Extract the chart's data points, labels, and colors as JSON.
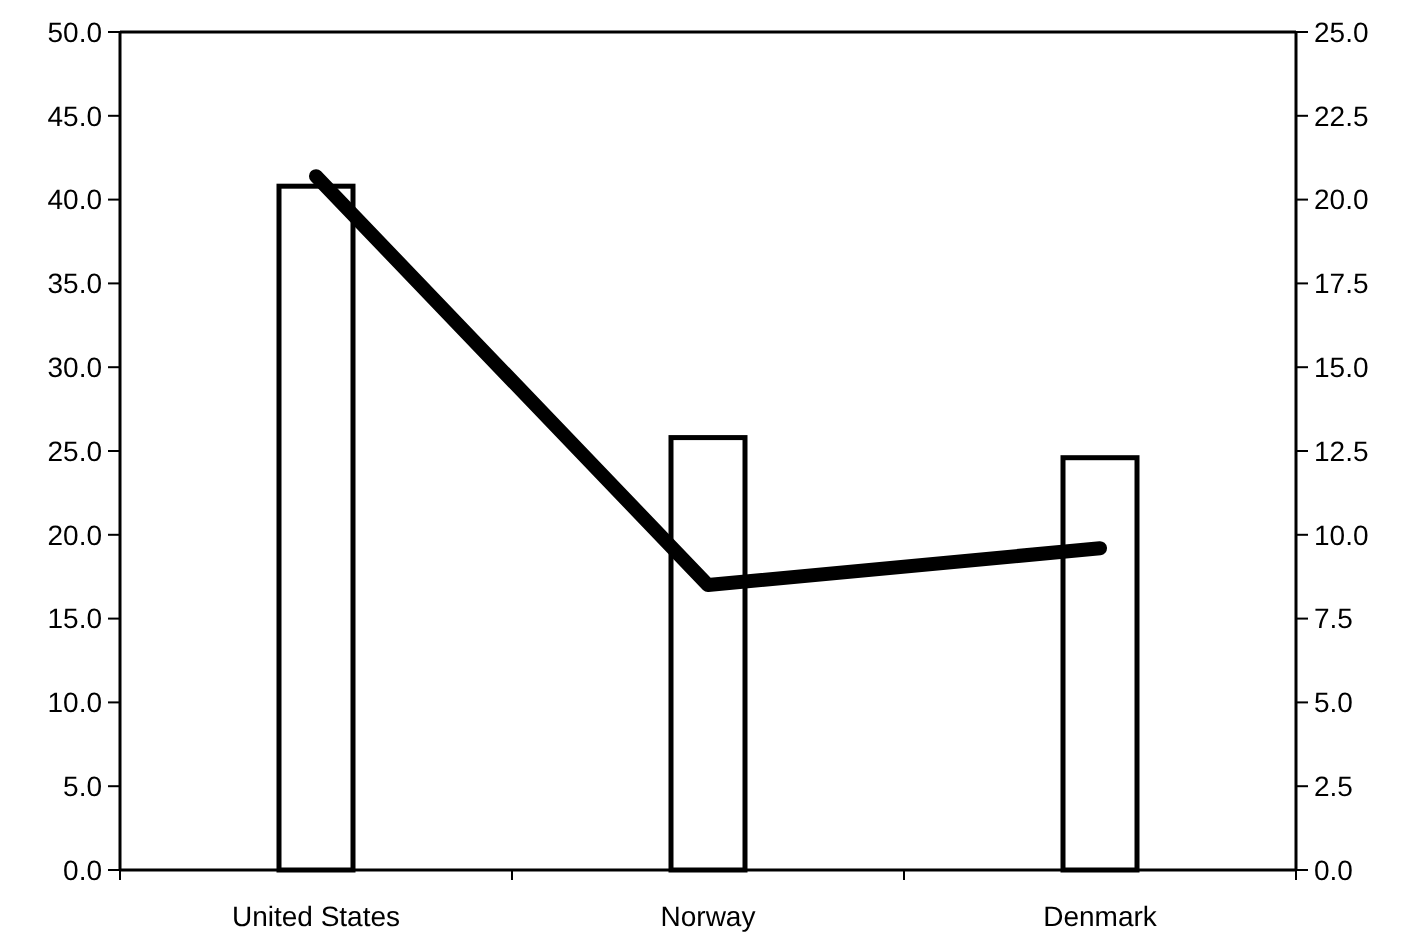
{
  "chart_data": {
    "type": "bar",
    "categories": [
      "United States",
      "Norway",
      "Denmark"
    ],
    "series": [
      {
        "color": "#ffffff",
        "values": [
          40.8,
          25.8,
          24.6
        ]
      },
      {
        "type": "line",
        "axis": "y2",
        "color": "#000000",
        "values": [
          20.7,
          8.5,
          9.6
        ]
      }
    ],
    "ylim": [
      0,
      50
    ],
    "yticks": [
      {
        "value": 0,
        "label": "0.0"
      },
      {
        "value": 5,
        "label": "5.0"
      },
      {
        "value": 10,
        "label": "10.0"
      },
      {
        "value": 15,
        "label": "15.0"
      },
      {
        "value": 20,
        "label": "20.0"
      },
      {
        "value": 25,
        "label": "25.0"
      },
      {
        "value": 30,
        "label": "30.0"
      },
      {
        "value": 35,
        "label": "35.0"
      },
      {
        "value": 40,
        "label": "40.0"
      },
      {
        "value": 45,
        "label": "45.0"
      },
      {
        "value": 50,
        "label": "50.0"
      }
    ],
    "y2lim": [
      0,
      25
    ],
    "y2ticks": [
      {
        "value": 0,
        "label": "0.0"
      },
      {
        "value": 2.5,
        "label": "2.5"
      },
      {
        "value": 5,
        "label": "5.0"
      },
      {
        "value": 7.5,
        "label": "7.5"
      },
      {
        "value": 10,
        "label": "10.0"
      },
      {
        "value": 12.5,
        "label": "12.5"
      },
      {
        "value": 15,
        "label": "15.0"
      },
      {
        "value": 17.5,
        "label": "17.5"
      },
      {
        "value": 20,
        "label": "20.0"
      },
      {
        "value": 22.5,
        "label": "22.5"
      },
      {
        "value": 25,
        "label": "25.0"
      }
    ],
    "grid": false,
    "marker": "none",
    "line_style": "solid"
  }
}
